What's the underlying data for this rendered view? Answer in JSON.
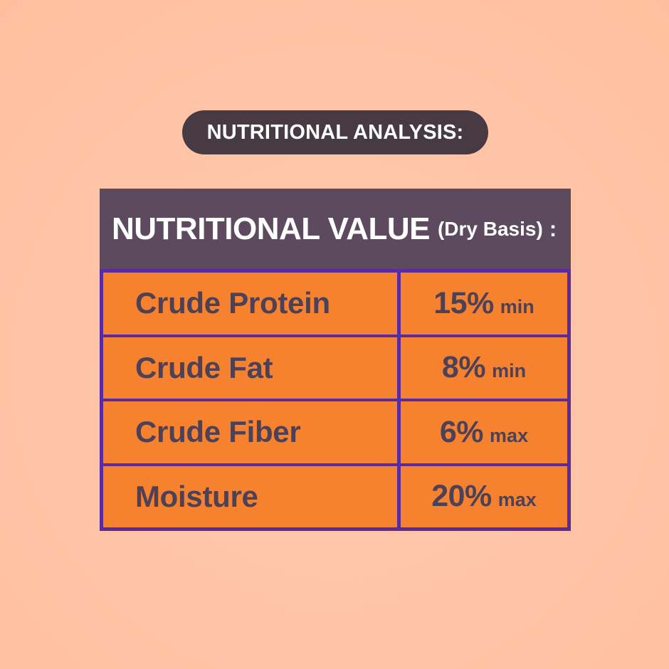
{
  "badge": {
    "label": "NUTRITIONAL ANALYSIS:"
  },
  "table": {
    "header": {
      "title": "NUTRITIONAL VALUE",
      "subtitle": "(Dry Basis)",
      "colon": ":"
    },
    "rows": [
      {
        "label": "Crude Protein",
        "value": "15%",
        "qualifier": "min"
      },
      {
        "label": "Crude Fat",
        "value": "8%",
        "qualifier": "min"
      },
      {
        "label": "Crude Fiber",
        "value": "6%",
        "qualifier": "max"
      },
      {
        "label": "Moisture",
        "value": "20%",
        "qualifier": "max"
      }
    ]
  },
  "colors": {
    "background": "#ffc5a8",
    "badge_bg": "#473a43",
    "header_bg": "#5d4a5e",
    "cell_bg": "#f6822f",
    "border": "#5a2b9f",
    "cell_text": "#4c4156",
    "header_text": "#ffffff"
  }
}
